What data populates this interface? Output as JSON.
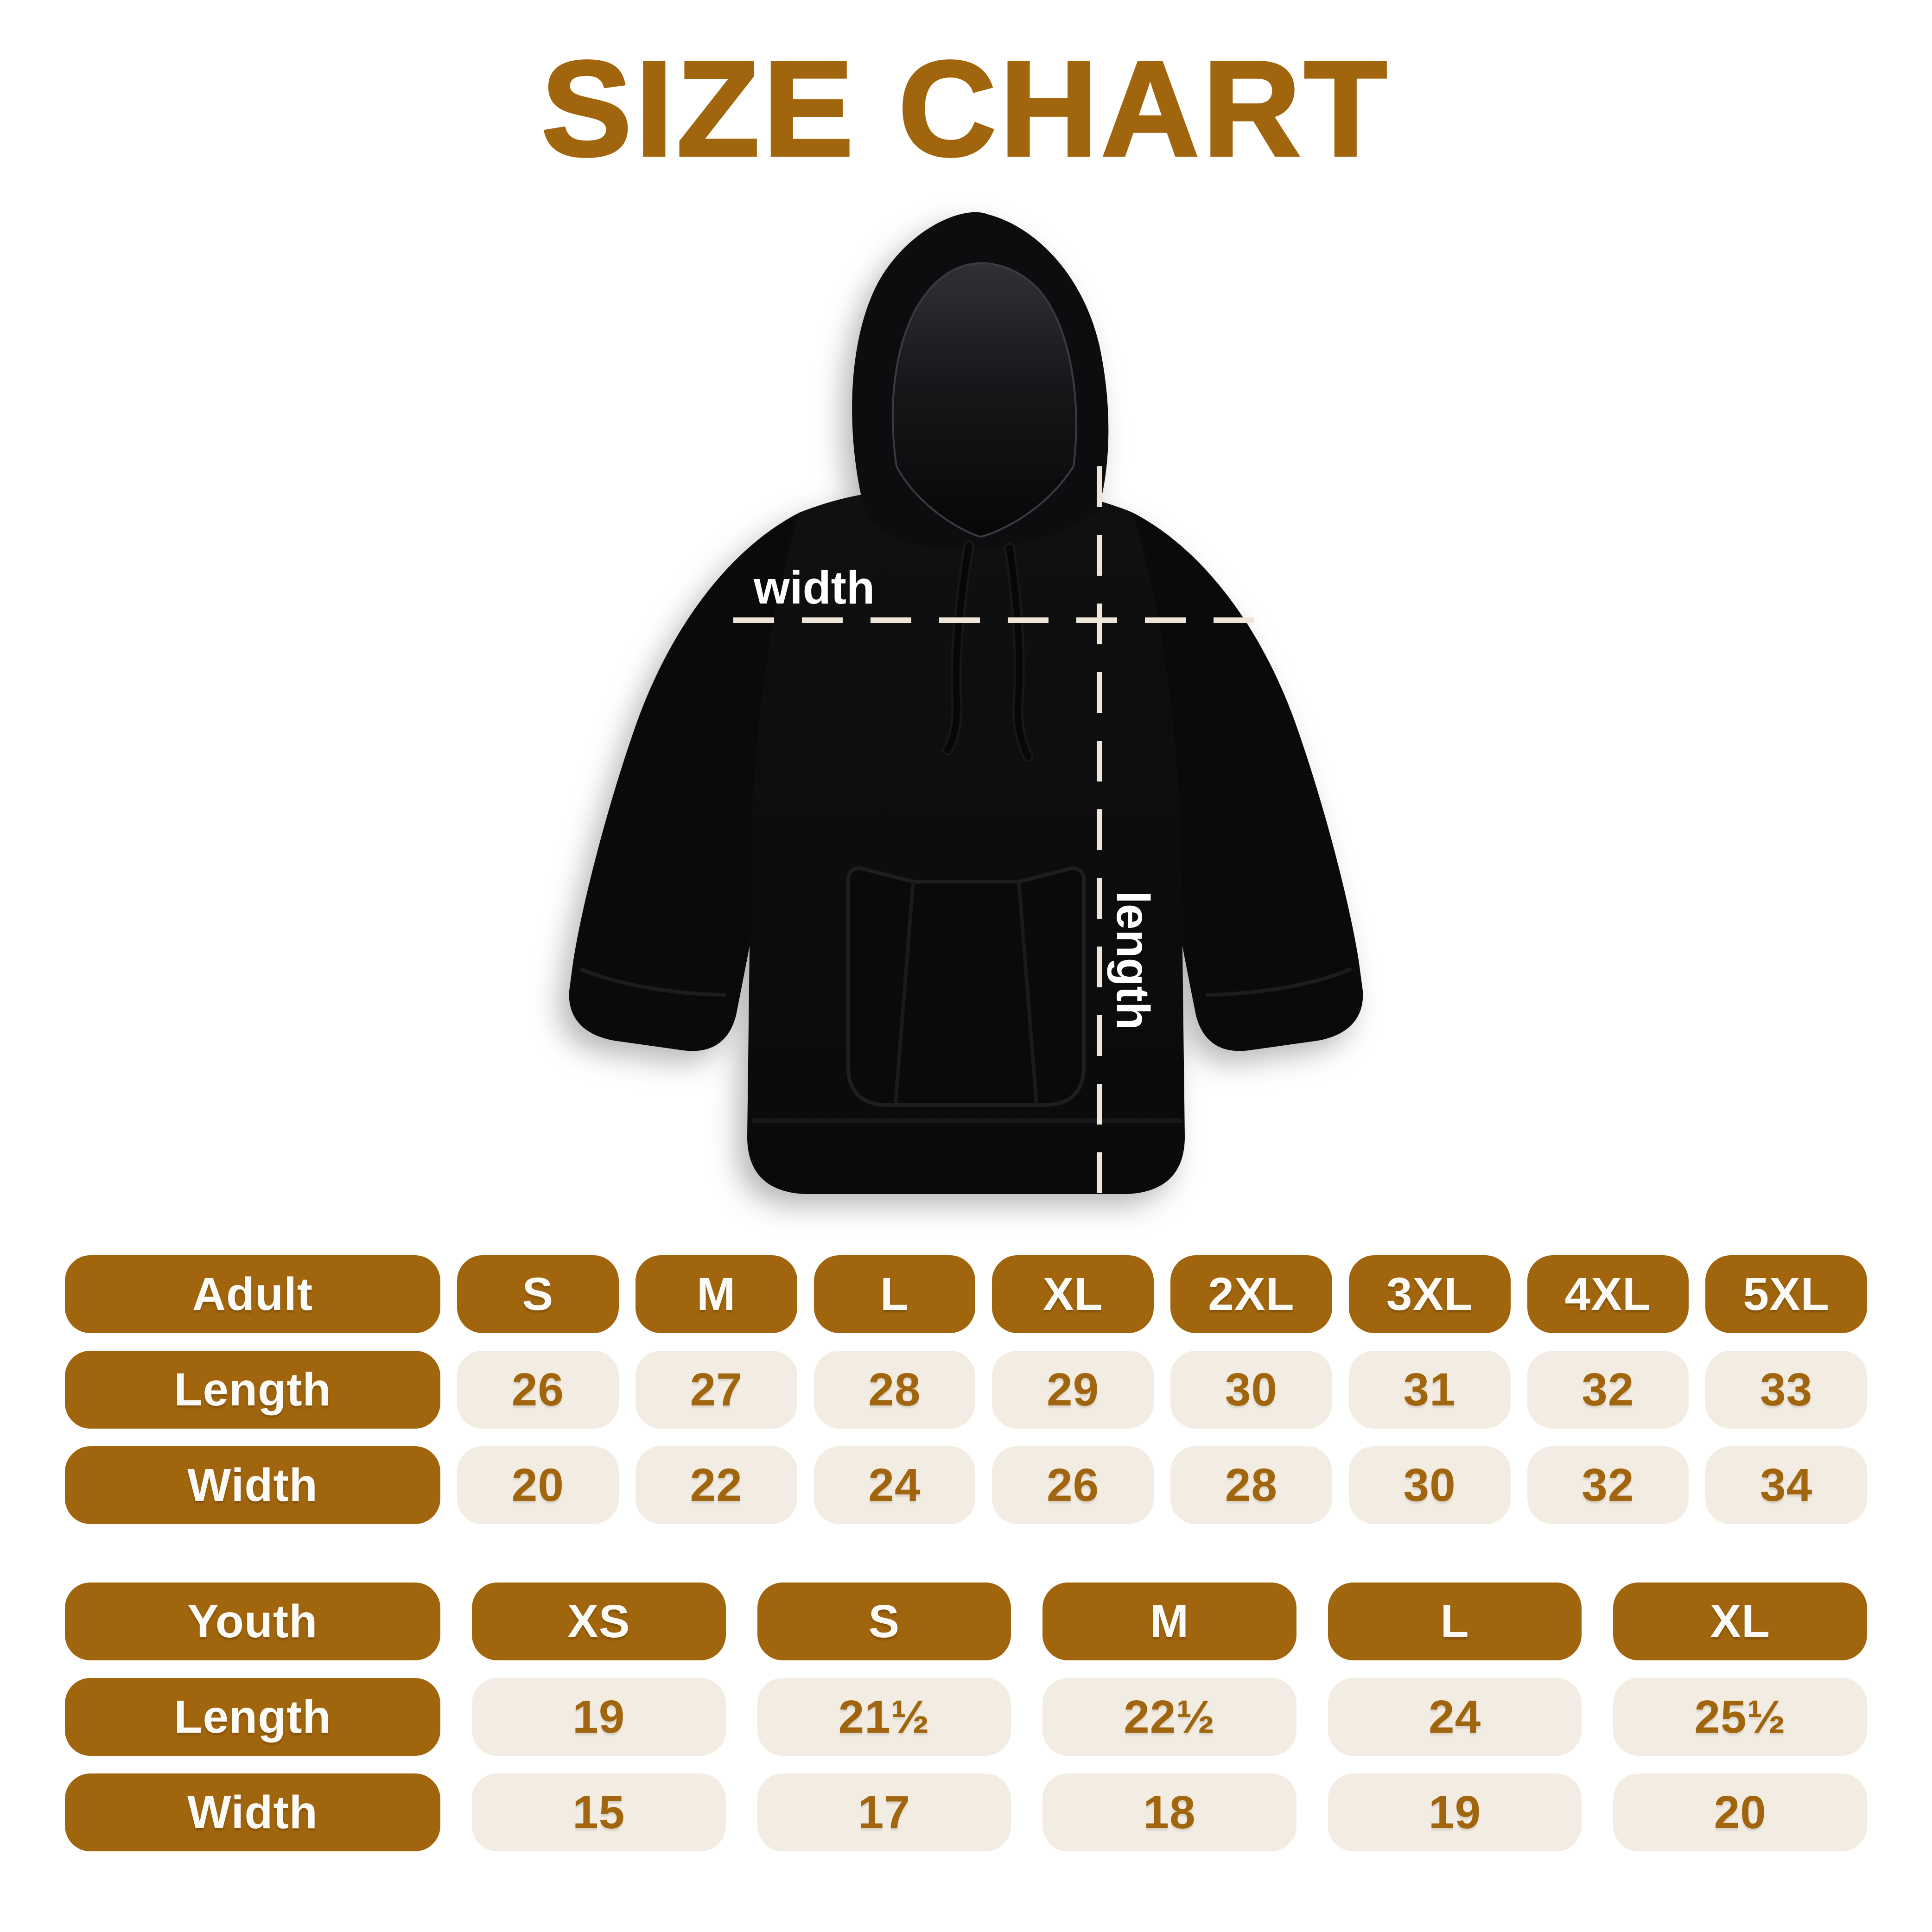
{
  "title": "SIZE CHART",
  "colors": {
    "brown": "#A1660D",
    "beige": "#F2ECE2",
    "cream_dash": "#EDE6D9",
    "hoodie_black": "#0B0B0C",
    "background": "#FFFFFF"
  },
  "diagram": {
    "garment": "black pullover hoodie",
    "width_label": "width",
    "length_label": "length"
  },
  "adult_table": {
    "header": [
      "Adult",
      "S",
      "M",
      "L",
      "XL",
      "2XL",
      "3XL",
      "4XL",
      "5XL"
    ],
    "rows": [
      {
        "label": "Length",
        "values": [
          "26",
          "27",
          "28",
          "29",
          "30",
          "31",
          "32",
          "33"
        ]
      },
      {
        "label": "Width",
        "values": [
          "20",
          "22",
          "24",
          "26",
          "28",
          "30",
          "32",
          "34"
        ]
      }
    ]
  },
  "youth_table": {
    "header": [
      "Youth",
      "XS",
      "S",
      "M",
      "L",
      "XL"
    ],
    "rows": [
      {
        "label": "Length",
        "values": [
          "19",
          "21½",
          "22½",
          "24",
          "25½"
        ]
      },
      {
        "label": "Width",
        "values": [
          "15",
          "17",
          "18",
          "19",
          "20"
        ]
      }
    ]
  },
  "chart_data": [
    {
      "type": "table",
      "title": "Adult",
      "columns": [
        "Adult",
        "S",
        "M",
        "L",
        "XL",
        "2XL",
        "3XL",
        "4XL",
        "5XL"
      ],
      "rows": [
        [
          "Length",
          26,
          27,
          28,
          29,
          30,
          31,
          32,
          33
        ],
        [
          "Width",
          20,
          22,
          24,
          26,
          28,
          30,
          32,
          34
        ]
      ]
    },
    {
      "type": "table",
      "title": "Youth",
      "columns": [
        "Youth",
        "XS",
        "S",
        "M",
        "L",
        "XL"
      ],
      "rows": [
        [
          "Length",
          19,
          21.5,
          22.5,
          24,
          25.5
        ],
        [
          "Width",
          15,
          17,
          18,
          19,
          20
        ]
      ]
    }
  ]
}
